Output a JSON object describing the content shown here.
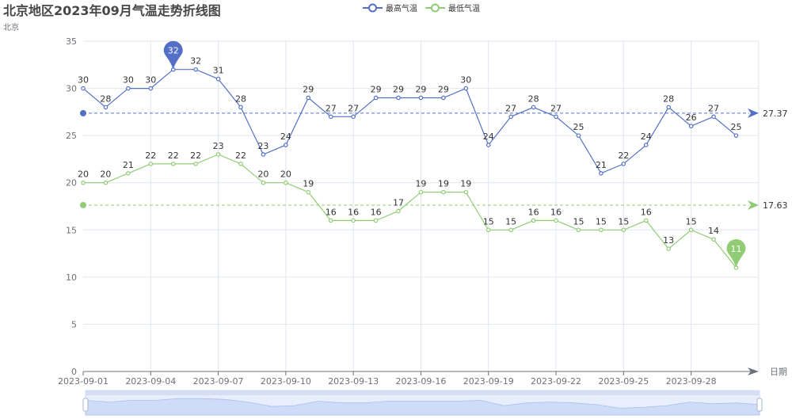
{
  "title": "北京地区2023年09月气温走势折线图",
  "subtitle": "北京",
  "legend": [
    {
      "label": "最高气温",
      "color": "#5470c6"
    },
    {
      "label": "最低气温",
      "color": "#91cc75"
    }
  ],
  "x_axis_name": "日期",
  "chart_data": {
    "type": "line",
    "title": "北京地区2023年09月气温走势折线图",
    "subtitle": "北京",
    "xlabel": "日期",
    "ylabel": "",
    "ylim": [
      0,
      35
    ],
    "yticks": [
      0,
      5,
      10,
      15,
      20,
      25,
      30,
      35
    ],
    "xtick_labels": [
      "2023-09-01",
      "2023-09-04",
      "2023-09-07",
      "2023-09-10",
      "2023-09-13",
      "2023-09-16",
      "2023-09-19",
      "2023-09-22",
      "2023-09-25",
      "2023-09-28"
    ],
    "grid": true,
    "legend_position": "top-center",
    "categories": [
      "2023-09-01",
      "2023-09-02",
      "2023-09-03",
      "2023-09-04",
      "2023-09-05",
      "2023-09-06",
      "2023-09-07",
      "2023-09-08",
      "2023-09-09",
      "2023-09-10",
      "2023-09-11",
      "2023-09-12",
      "2023-09-13",
      "2023-09-14",
      "2023-09-15",
      "2023-09-16",
      "2023-09-17",
      "2023-09-18",
      "2023-09-19",
      "2023-09-20",
      "2023-09-21",
      "2023-09-22",
      "2023-09-23",
      "2023-09-24",
      "2023-09-25",
      "2023-09-26",
      "2023-09-27",
      "2023-09-28",
      "2023-09-29",
      "2023-09-30"
    ],
    "series": [
      {
        "name": "最高气温",
        "color": "#5470c6",
        "values": [
          30,
          28,
          30,
          30,
          32,
          32,
          31,
          28,
          23,
          24,
          29,
          27,
          27,
          29,
          29,
          29,
          29,
          30,
          24,
          27,
          28,
          27,
          25,
          21,
          22,
          24,
          28,
          26,
          27,
          25
        ],
        "mark_point": {
          "type": "max",
          "value": 32,
          "index": 4
        },
        "mark_line": {
          "type": "average",
          "value": "27.37"
        }
      },
      {
        "name": "最低气温",
        "color": "#91cc75",
        "values": [
          20,
          20,
          21,
          22,
          22,
          22,
          23,
          22,
          20,
          20,
          19,
          16,
          16,
          16,
          17,
          19,
          19,
          19,
          15,
          15,
          16,
          16,
          15,
          15,
          15,
          16,
          13,
          15,
          14,
          11
        ],
        "mark_point": {
          "type": "min",
          "value": 11,
          "index": 29
        },
        "mark_line": {
          "type": "average",
          "value": "17.63"
        }
      }
    ],
    "data_zoom": {
      "start": 0,
      "end": 100
    }
  }
}
